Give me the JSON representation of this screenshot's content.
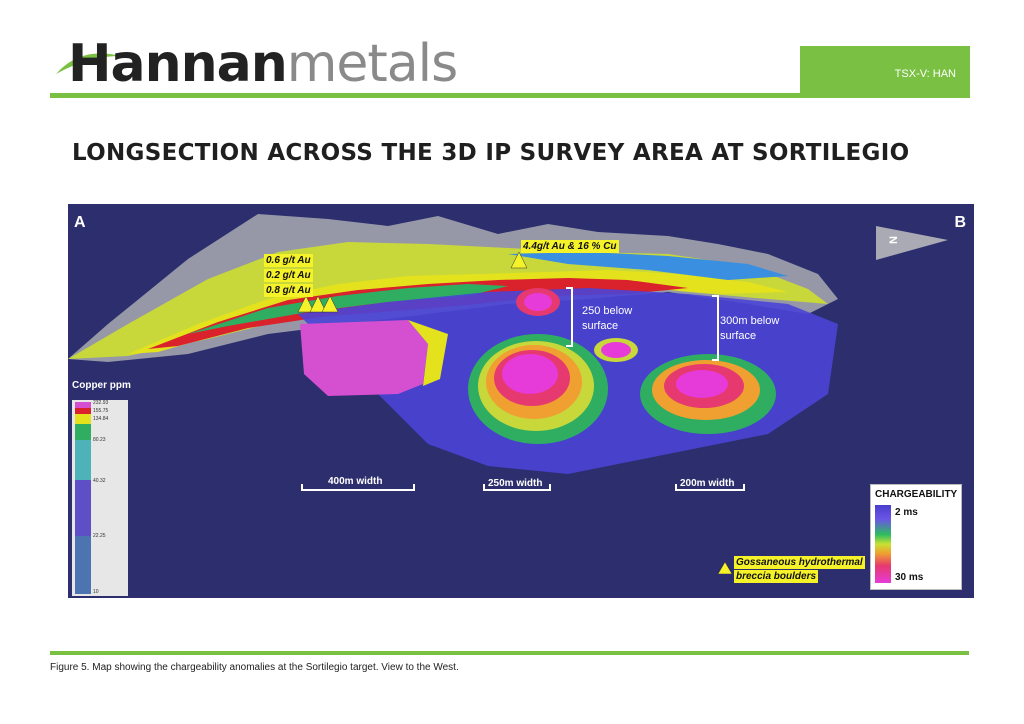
{
  "header": {
    "logo_part1": "Hannan",
    "logo_part2": "metals",
    "ticker": "TSX-V: HAN"
  },
  "title": "LONGSECTION ACROSS THE 3D IP SURVEY AREA AT SORTILEGIO",
  "figure": {
    "label_a": "A",
    "label_b": "B",
    "compass": "N",
    "samples": [
      "0.6 g/t Au",
      "0.2 g/t Au",
      "0.8 g/t Au",
      "4.4g/t Au & 16 % Cu"
    ],
    "depth_250": [
      "250 below",
      "surface"
    ],
    "depth_300": [
      "300m below",
      "surface"
    ],
    "widths": [
      "400m width",
      "250m width",
      "200m width"
    ],
    "copper_legend": {
      "title": "Copper  ppm",
      "ticks": [
        "232.93",
        "155.75",
        "134.84",
        "80.23",
        "40.32",
        "22.25",
        "10"
      ]
    },
    "chargeability_legend": {
      "title": "CHARGEABILITY",
      "low": "2 ms",
      "high": "30 ms"
    },
    "boulder_legend": [
      "Gossaneous hydrothermal",
      "breccia boulders"
    ]
  },
  "caption": "Figure 5. Map showing the chargeability anomalies at the Sortilegio  target. View to the West.",
  "colors": {
    "brand_green": "#7ac143",
    "figure_bg": "#2c2e6d",
    "sample_yellow": "#f5f22a"
  }
}
